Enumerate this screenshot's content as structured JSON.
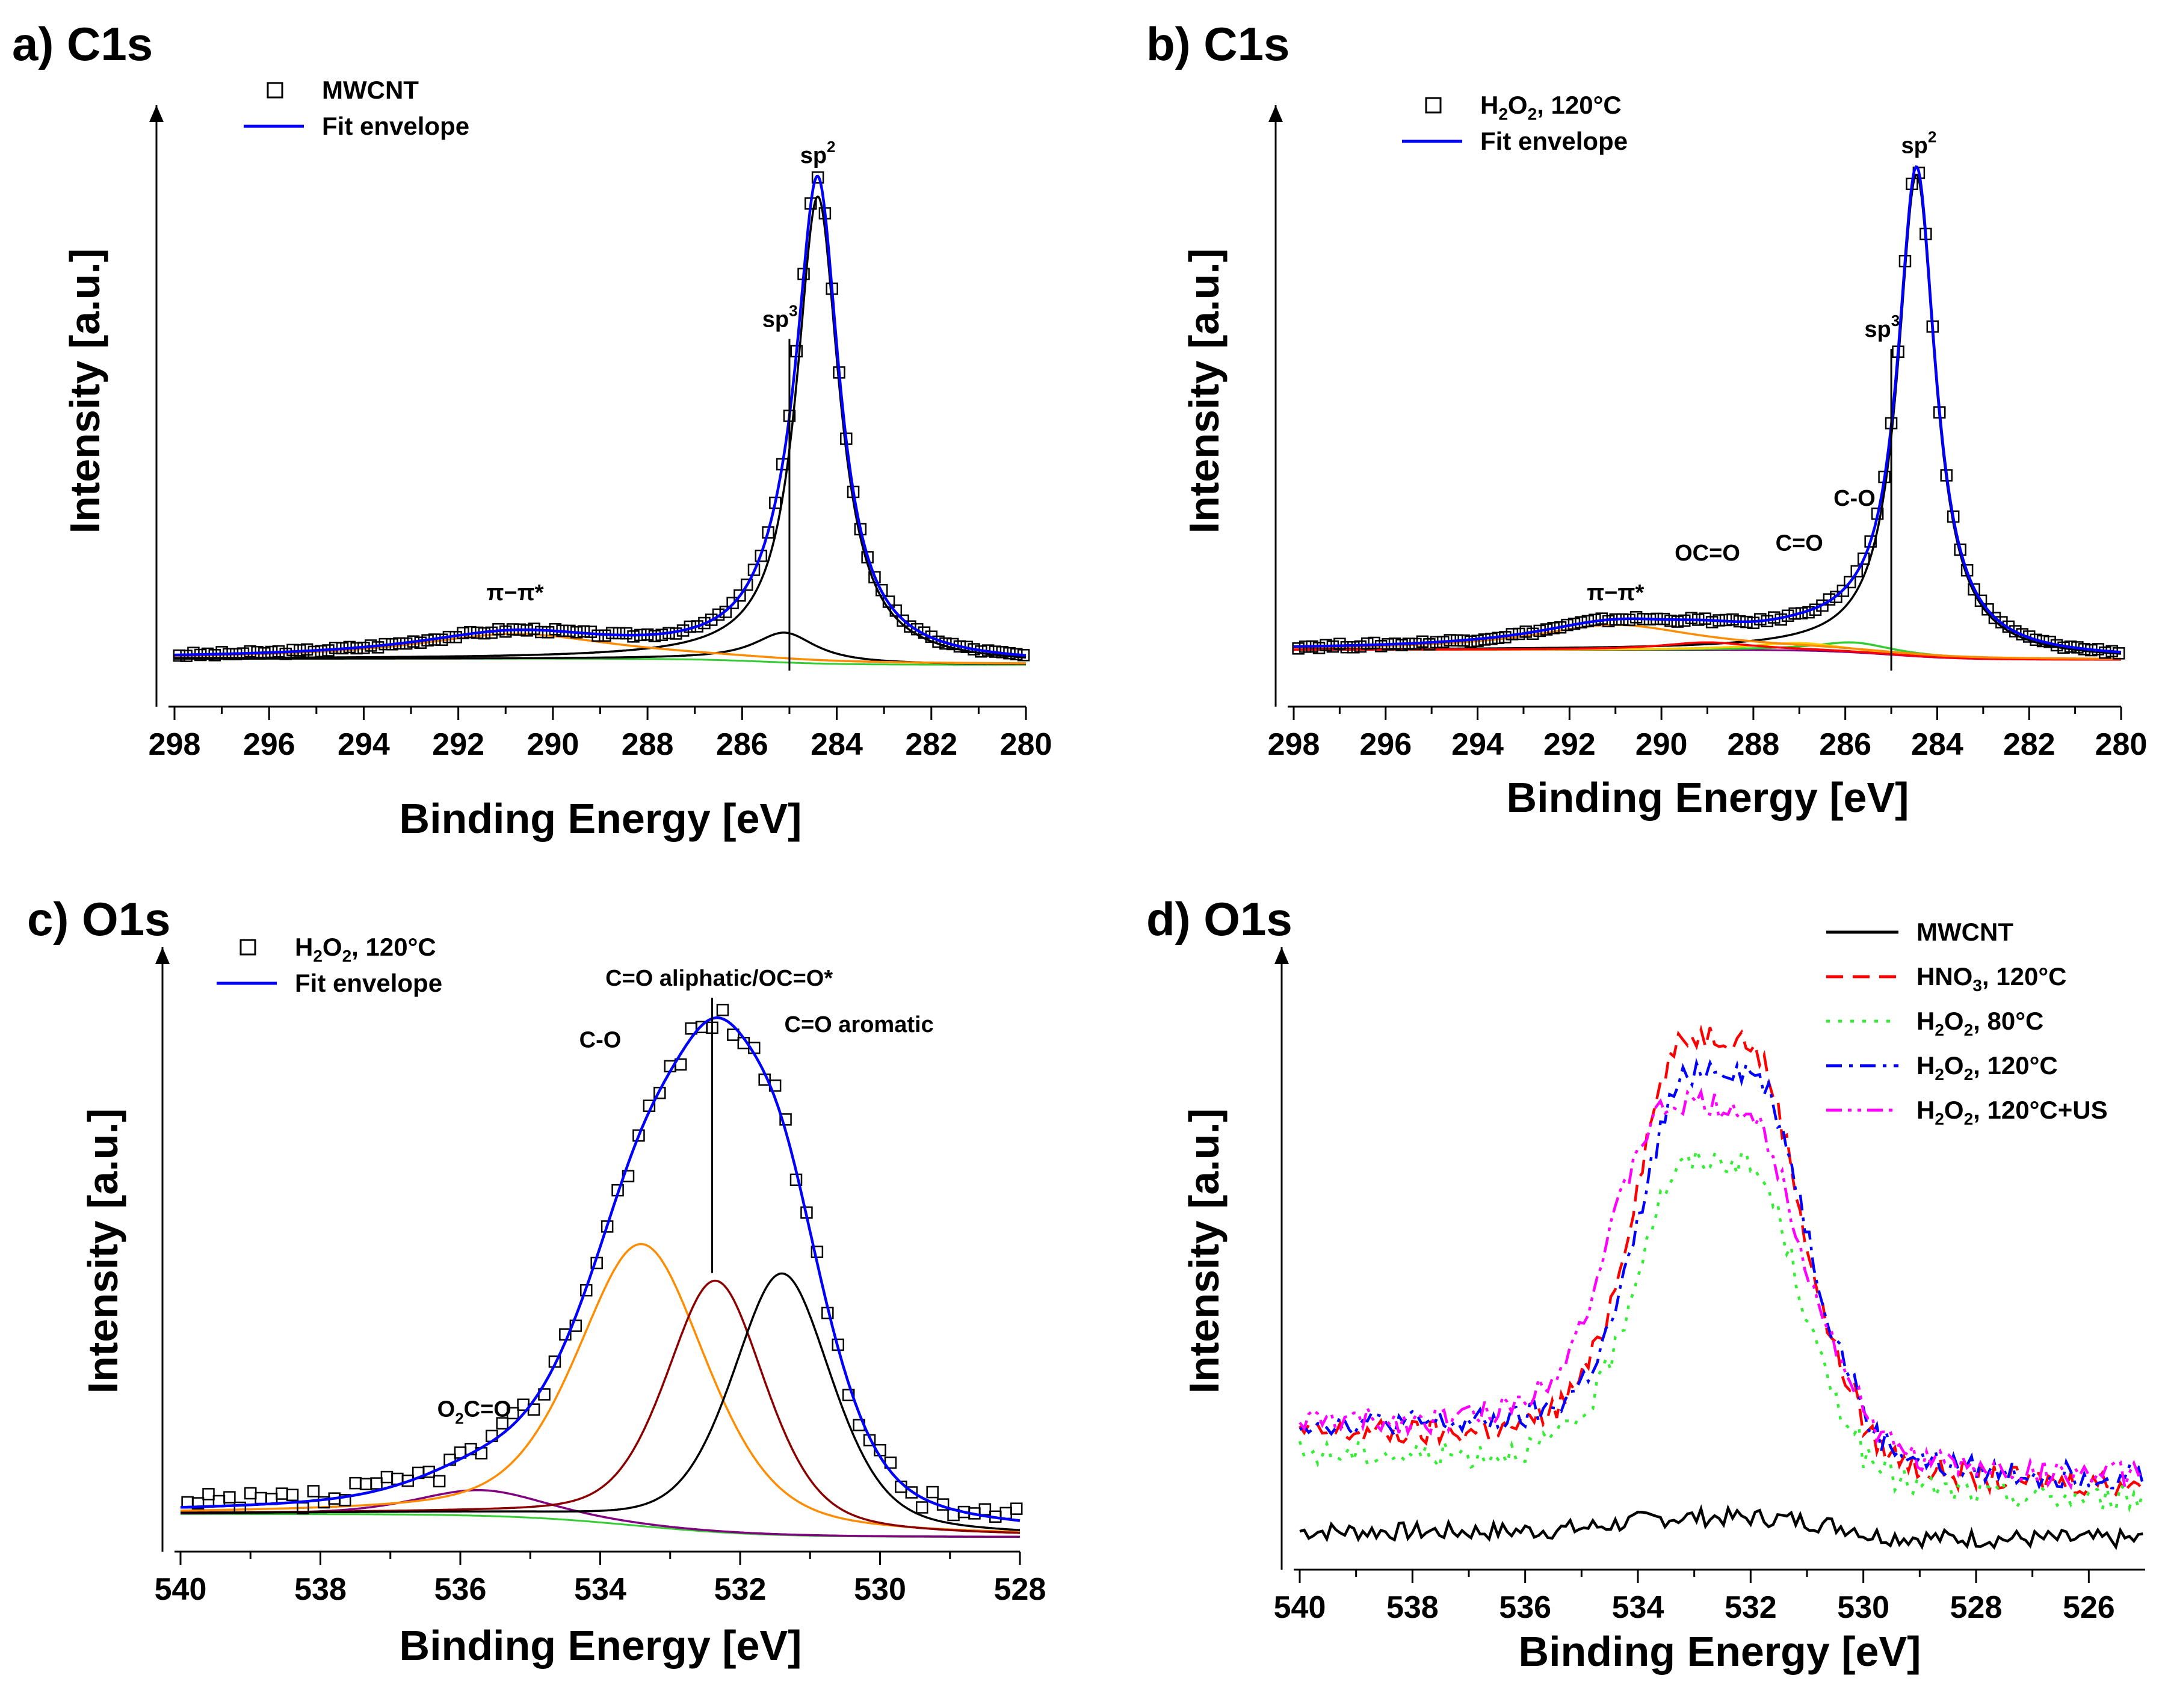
{
  "figure": {
    "panel_labels": [
      "a) C1s",
      "b) C1s",
      "c) O1s",
      "d) O1s"
    ]
  },
  "chart_data": [
    {
      "id": "a",
      "type": "line",
      "title": "a) C1s",
      "xlabel": "Binding Energy [eV]",
      "ylabel": "Intensity [a.u.]",
      "xlim": [
        298,
        280
      ],
      "ylim": [
        0,
        1.12
      ],
      "xticks": [
        298,
        296,
        294,
        292,
        290,
        288,
        286,
        284,
        282,
        280
      ],
      "xtick_labels": [
        "298",
        "296",
        "294",
        "292",
        "290",
        "288",
        "286",
        "284",
        "282",
        "280"
      ],
      "legend": [
        {
          "label": "MWCNT",
          "style": "open-square-markers",
          "color": "#000000"
        },
        {
          "label": "Fit envelope",
          "style": "line",
          "color": "#0000ff"
        }
      ],
      "annotations": [
        {
          "text": "sp",
          "sup": "2",
          "x": 284.4,
          "y": 1.04
        },
        {
          "text": "sp",
          "sup": "3",
          "x": 285.2,
          "y": 0.71,
          "vline_x": 285.0
        },
        {
          "text": "π−π*",
          "x": 290.8,
          "y": 0.16
        }
      ],
      "baseline": 0.03,
      "components": [
        {
          "name": "sp2",
          "center": 284.4,
          "height": 0.94,
          "width": 0.55,
          "color": "#000000"
        },
        {
          "name": "sp3",
          "center": 285.1,
          "height": 0.06,
          "width": 0.8,
          "color": "#000000"
        },
        {
          "name": "pi-pi*",
          "center": 290.8,
          "height": 0.05,
          "width": 2.6,
          "color": "#ff8c00"
        },
        {
          "name": "background",
          "color": "#33cc33",
          "values_note": "shirley step 0.04 -> 0.02"
        }
      ],
      "envelope_color": "#0000ff",
      "marker_step": 0.15
    },
    {
      "id": "b",
      "type": "line",
      "title": "b) C1s",
      "xlabel": "Binding Energy [eV]",
      "ylabel": "Intensity [a.u.]",
      "xlim": [
        298,
        280
      ],
      "ylim": [
        0,
        1.12
      ],
      "xticks": [
        298,
        296,
        294,
        292,
        290,
        288,
        286,
        284,
        282,
        280
      ],
      "xtick_labels": [
        "298",
        "296",
        "294",
        "292",
        "290",
        "288",
        "286",
        "284",
        "282",
        "280"
      ],
      "legend": [
        {
          "label": "H",
          "sub": "2",
          "label2": "O",
          "sub2": "2",
          "label3": ", 120°C",
          "style": "open-square-markers",
          "color": "#000000"
        },
        {
          "label": "Fit envelope",
          "style": "line",
          "color": "#0000ff"
        }
      ],
      "annotations": [
        {
          "text": "sp",
          "sup": "2",
          "x": 284.4,
          "y": 1.06
        },
        {
          "text": "sp",
          "sup": "3",
          "x": 285.2,
          "y": 0.69,
          "vline_x": 285.0
        },
        {
          "text": "C-O",
          "x": 285.8,
          "y": 0.35
        },
        {
          "text": "C=O",
          "x": 287.0,
          "y": 0.26
        },
        {
          "text": "OC=O",
          "x": 289.0,
          "y": 0.24
        },
        {
          "text": "π−π*",
          "x": 291.0,
          "y": 0.16
        }
      ],
      "baseline": 0.05,
      "components": [
        {
          "name": "sp2",
          "center": 284.45,
          "height": 0.97,
          "width": 0.5,
          "color": "#000000"
        },
        {
          "name": "C-O",
          "center": 285.8,
          "height": 0.02,
          "width": 1.0,
          "color": "#33cc33"
        },
        {
          "name": "C=O",
          "center": 287.0,
          "height": 0.015,
          "width": 1.2,
          "color": "#ffcc00"
        },
        {
          "name": "OC=O",
          "center": 289.0,
          "height": 0.015,
          "width": 1.2,
          "color": "#ff0000"
        },
        {
          "name": "pi-pi*",
          "center": 291.0,
          "height": 0.05,
          "width": 2.2,
          "color": "#ff8c00"
        },
        {
          "name": "background",
          "color": "#800080",
          "values_note": "shirley step 0.06 -> 0.03"
        }
      ],
      "envelope_color": "#0000ff",
      "marker_step": 0.15
    },
    {
      "id": "c",
      "type": "line",
      "title": "c) O1s",
      "xlabel": "Binding Energy [eV]",
      "ylabel": "Intensity [a.u.]",
      "xlim": [
        540,
        528
      ],
      "ylim": [
        0,
        1.12
      ],
      "xticks": [
        540,
        538,
        536,
        534,
        532,
        530,
        528
      ],
      "xtick_labels": [
        "540",
        "538",
        "536",
        "534",
        "532",
        "530",
        "528"
      ],
      "legend": [
        {
          "label": "H",
          "sub": "2",
          "label2": "O",
          "sub2": "2",
          "label3": ", 120°C",
          "style": "open-square-markers",
          "color": "#000000"
        },
        {
          "label": "Fit envelope",
          "style": "line",
          "color": "#0000ff"
        }
      ],
      "annotations": [
        {
          "text": "C=O aliphatic/OC=O*",
          "x": 532.3,
          "y": 1.08,
          "vline_x": 532.4
        },
        {
          "text": "C=O aromatic",
          "x": 530.3,
          "y": 0.99
        },
        {
          "text": "C-O",
          "x": 534.0,
          "y": 0.96
        },
        {
          "text": "O",
          "sub": "2",
          "text2": "C=O",
          "x": 535.8,
          "y": 0.24
        }
      ],
      "baseline": 0.04,
      "components": [
        {
          "name": "O2C=O",
          "center": 535.7,
          "height": 0.05,
          "width": 1.1,
          "color": "#800080"
        },
        {
          "name": "C-O",
          "center": 533.4,
          "height": 0.55,
          "width": 1.1,
          "color": "#ff8c00"
        },
        {
          "name": "C=O aliphatic/OC=O*",
          "center": 532.35,
          "height": 0.49,
          "width": 0.85,
          "color": "#8b0000"
        },
        {
          "name": "C=O aromatic",
          "center": 531.4,
          "height": 0.51,
          "width": 0.85,
          "color": "#000000"
        },
        {
          "name": "background",
          "color": "#33cc33",
          "values_note": "step 0.045 -> 0.0"
        }
      ],
      "envelope_color": "#0000ff",
      "marker_step": 0.15
    },
    {
      "id": "d",
      "type": "line",
      "title": "d) O1s",
      "xlabel": "Binding Energy [eV]",
      "ylabel": "Intensity [a.u.]",
      "xlim": [
        540,
        525
      ],
      "ylim": [
        0,
        1.12
      ],
      "xticks": [
        540,
        538,
        536,
        534,
        532,
        530,
        528,
        526
      ],
      "xtick_labels": [
        "540",
        "538",
        "536",
        "534",
        "532",
        "530",
        "528",
        "526"
      ],
      "series": [
        {
          "name": "MWCNT",
          "color": "#000000",
          "dash": "solid",
          "peak": 0.03,
          "center": 532.5,
          "width": 1.6,
          "offset": 0.05
        },
        {
          "name": "HNO3, 120°C",
          "label": "HNO",
          "sub": "3",
          "label2": ", 120°C",
          "color": "#ff0000",
          "dash": "dashed",
          "peak": 0.8,
          "center": 532.6,
          "width": 1.3,
          "offset": 0.2
        },
        {
          "name": "H2O2, 80°C",
          "label": "H",
          "sub": "2",
          "label2": "O",
          "sub2": "2",
          "label3": ", 80°C",
          "color": "#33ee33",
          "dash": "dotted",
          "peak": 0.6,
          "center": 532.6,
          "width": 1.3,
          "offset": 0.16
        },
        {
          "name": "H2O2, 120°C",
          "label": "H",
          "sub": "2",
          "label2": "O",
          "sub2": "2",
          "label3": ", 120°C",
          "color": "#0000ff",
          "dash": "dashdot",
          "peak": 0.72,
          "center": 532.5,
          "width": 1.3,
          "offset": 0.22
        },
        {
          "name": "H2O2, 120°C+US",
          "label": "H",
          "sub": "2",
          "label2": "O",
          "sub2": "2",
          "label3": ", 120°C+US",
          "color": "#ff00ff",
          "dash": "dashdotdot",
          "peak": 0.65,
          "center": 532.8,
          "width": 1.5,
          "offset": 0.22
        }
      ]
    }
  ]
}
